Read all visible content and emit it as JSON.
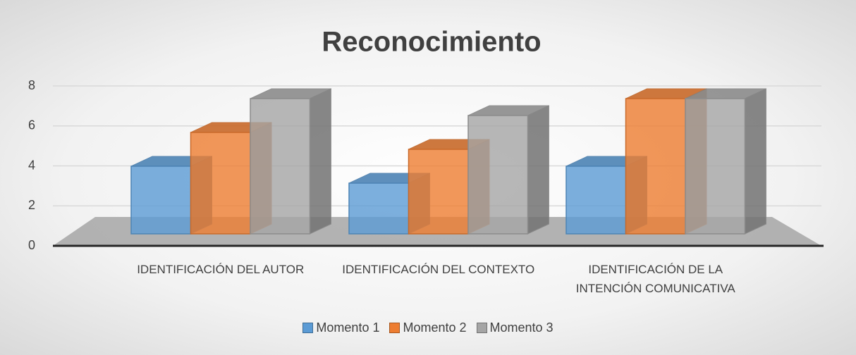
{
  "chart_data": {
    "type": "bar3d",
    "title": "Reconocimiento",
    "categories": [
      "IDENTIFICACIÓN DEL AUTOR",
      "IDENTIFICACIÓN DEL CONTEXTO",
      "IDENTIFICACIÓN DE LA INTENCIÓN COMUNICATIVA"
    ],
    "series": [
      {
        "name": "Momento 1",
        "color": "#5b9bd5",
        "values": [
          4,
          3,
          4
        ]
      },
      {
        "name": "Momento 2",
        "color": "#ed7d31",
        "values": [
          6,
          5,
          8
        ]
      },
      {
        "name": "Momento 3",
        "color": "#a5a5a5",
        "values": [
          8,
          7,
          8
        ]
      }
    ],
    "ylim": [
      0,
      8
    ],
    "yticks": [
      0,
      2,
      4,
      6,
      8
    ],
    "grid": true,
    "legend": "bottom"
  }
}
